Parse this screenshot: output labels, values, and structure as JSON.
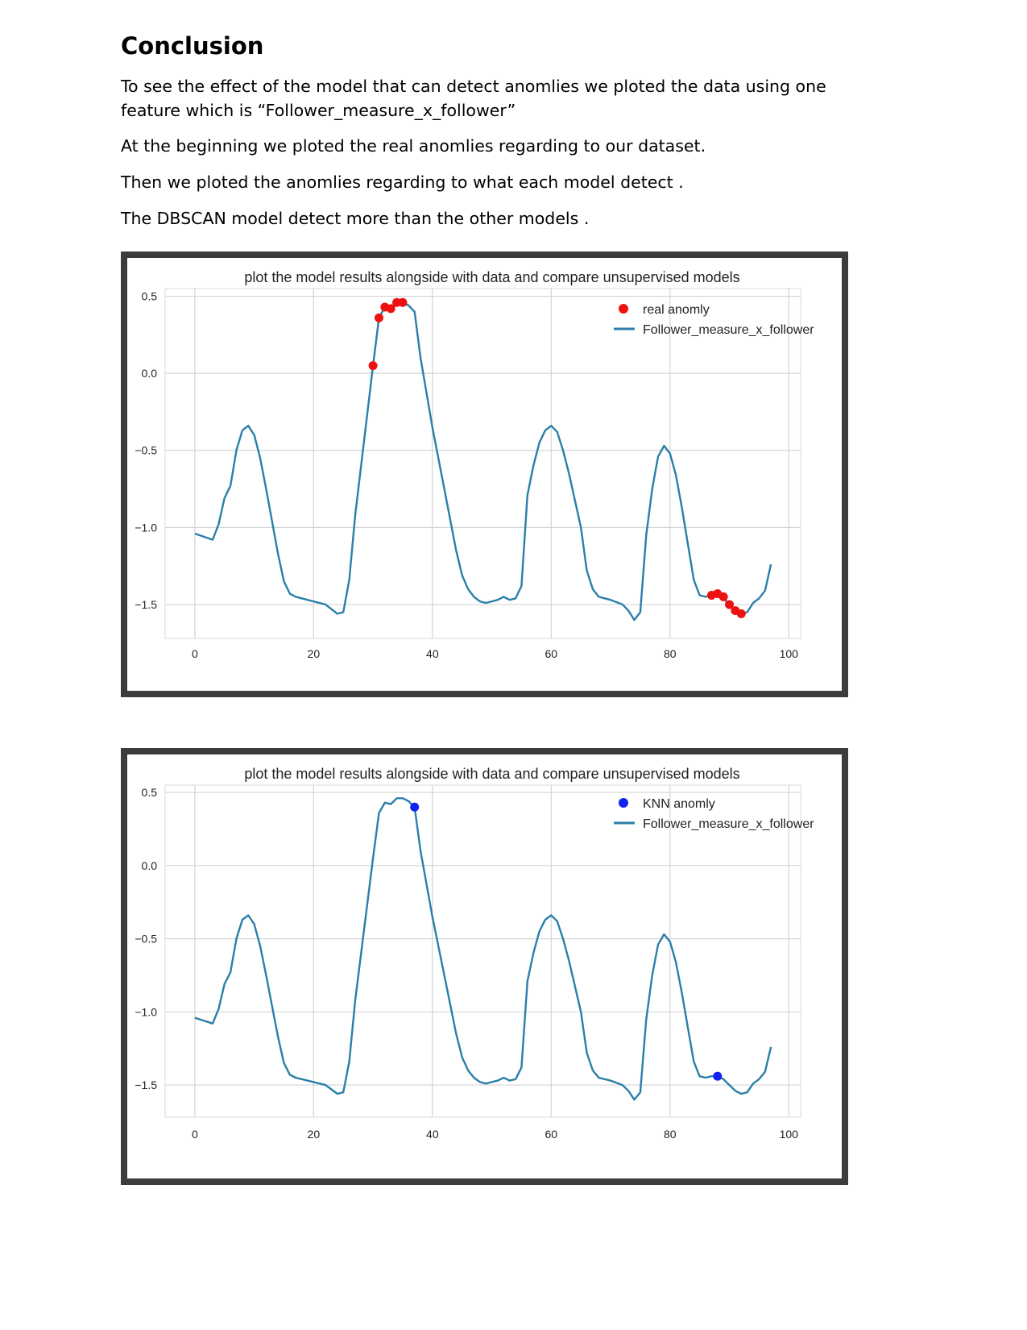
{
  "heading": "Conclusion",
  "paragraphs": [
    "To see the effect of the model that can detect anomlies we ploted the data using one feature which is “Follower_measure_x_follower”",
    "At the beginning we ploted the real anomlies regarding to our dataset.",
    "Then we ploted the anomlies regarding to what each model detect .",
    "The DBSCAN model detect more than the other models ."
  ],
  "figures": [
    {
      "title": "plot the model results alongside with data and compare unsupervised models",
      "line_legend": "Follower_measure_x_follower",
      "marker_legend": "real anomly",
      "marker_color": "#ee1111",
      "line_color": "#2a7fa8",
      "x_ticks": [
        "0",
        "20",
        "40",
        "60",
        "80",
        "100"
      ],
      "y_ticks": [
        "0.5",
        "0.0",
        "−0.5",
        "−1.0",
        "−1.5"
      ]
    },
    {
      "title": "plot the model results alongside with data and compare unsupervised models",
      "line_legend": "Follower_measure_x_follower",
      "marker_legend": "KNN anomly",
      "marker_color": "#1122ee",
      "line_color": "#2a7fa8",
      "x_ticks": [
        "0",
        "20",
        "40",
        "60",
        "80",
        "100"
      ],
      "y_ticks": [
        "0.5",
        "0.0",
        "−0.5",
        "−1.0",
        "−1.5"
      ]
    }
  ],
  "chart_data": [
    {
      "type": "line",
      "title": "plot the model results alongside with data and compare unsupervised models",
      "xlim": [
        -5,
        102
      ],
      "ylim": [
        -1.72,
        0.55
      ],
      "grid": true,
      "legend": "top-right",
      "x_ticks": [
        0,
        20,
        40,
        60,
        80,
        100
      ],
      "y_ticks": [
        0.5,
        0.0,
        -0.5,
        -1.0,
        -1.5
      ],
      "series": [
        {
          "name": "Follower_measure_x_follower",
          "kind": "line",
          "points": [
            [
              0,
              -1.04
            ],
            [
              3,
              -1.08
            ],
            [
              4,
              -0.98
            ],
            [
              5,
              -0.81
            ],
            [
              6,
              -0.73
            ],
            [
              7,
              -0.5
            ],
            [
              8,
              -0.37
            ],
            [
              9,
              -0.34
            ],
            [
              10,
              -0.4
            ],
            [
              11,
              -0.55
            ],
            [
              12,
              -0.75
            ],
            [
              14,
              -1.17
            ],
            [
              15,
              -1.35
            ],
            [
              16,
              -1.43
            ],
            [
              17,
              -1.45
            ],
            [
              18,
              -1.46
            ],
            [
              20,
              -1.48
            ],
            [
              22,
              -1.5
            ],
            [
              23,
              -1.53
            ],
            [
              24,
              -1.56
            ],
            [
              25,
              -1.55
            ],
            [
              26,
              -1.34
            ],
            [
              27,
              -0.92
            ],
            [
              30,
              0.05
            ],
            [
              31,
              0.36
            ],
            [
              32,
              0.43
            ],
            [
              33,
              0.42
            ],
            [
              34,
              0.46
            ],
            [
              35,
              0.46
            ],
            [
              36,
              0.44
            ],
            [
              37,
              0.4
            ],
            [
              38,
              0.1
            ],
            [
              40,
              -0.35
            ],
            [
              42,
              -0.75
            ],
            [
              44,
              -1.15
            ],
            [
              45,
              -1.31
            ],
            [
              46,
              -1.4
            ],
            [
              47,
              -1.45
            ],
            [
              48,
              -1.48
            ],
            [
              49,
              -1.49
            ],
            [
              50,
              -1.48
            ],
            [
              51,
              -1.47
            ],
            [
              52,
              -1.45
            ],
            [
              53,
              -1.47
            ],
            [
              54,
              -1.46
            ],
            [
              55,
              -1.38
            ],
            [
              56,
              -0.79
            ],
            [
              57,
              -0.6
            ],
            [
              58,
              -0.45
            ],
            [
              59,
              -0.37
            ],
            [
              60,
              -0.34
            ],
            [
              61,
              -0.38
            ],
            [
              62,
              -0.5
            ],
            [
              63,
              -0.65
            ],
            [
              65,
              -1.0
            ],
            [
              66,
              -1.28
            ],
            [
              67,
              -1.4
            ],
            [
              68,
              -1.45
            ],
            [
              69,
              -1.46
            ],
            [
              70,
              -1.47
            ],
            [
              72,
              -1.5
            ],
            [
              73,
              -1.54
            ],
            [
              74,
              -1.6
            ],
            [
              75,
              -1.55
            ],
            [
              76,
              -1.05
            ],
            [
              77,
              -0.75
            ],
            [
              78,
              -0.54
            ],
            [
              79,
              -0.47
            ],
            [
              80,
              -0.52
            ],
            [
              81,
              -0.66
            ],
            [
              82,
              -0.87
            ],
            [
              84,
              -1.34
            ],
            [
              85,
              -1.44
            ],
            [
              86,
              -1.45
            ],
            [
              87,
              -1.44
            ],
            [
              88,
              -1.44
            ],
            [
              89,
              -1.46
            ],
            [
              90,
              -1.5
            ],
            [
              91,
              -1.54
            ],
            [
              92,
              -1.56
            ],
            [
              93,
              -1.55
            ],
            [
              94,
              -1.49
            ],
            [
              95,
              -1.46
            ],
            [
              96,
              -1.41
            ],
            [
              97,
              -1.24
            ]
          ]
        },
        {
          "name": "real anomly",
          "kind": "scatter",
          "points": [
            [
              30,
              0.05
            ],
            [
              31,
              0.36
            ],
            [
              32,
              0.43
            ],
            [
              33,
              0.42
            ],
            [
              34,
              0.46
            ],
            [
              35,
              0.46
            ],
            [
              87,
              -1.44
            ],
            [
              88,
              -1.43
            ],
            [
              89,
              -1.45
            ],
            [
              90,
              -1.5
            ],
            [
              91,
              -1.54
            ],
            [
              92,
              -1.56
            ]
          ]
        }
      ]
    },
    {
      "type": "line",
      "title": "plot the model results alongside with data and compare unsupervised models",
      "xlim": [
        -5,
        102
      ],
      "ylim": [
        -1.72,
        0.55
      ],
      "grid": true,
      "legend": "top-right",
      "x_ticks": [
        0,
        20,
        40,
        60,
        80,
        100
      ],
      "y_ticks": [
        0.5,
        0.0,
        -0.5,
        -1.0,
        -1.5
      ],
      "series": [
        {
          "name": "Follower_measure_x_follower",
          "kind": "line",
          "points": [
            [
              0,
              -1.04
            ],
            [
              3,
              -1.08
            ],
            [
              4,
              -0.98
            ],
            [
              5,
              -0.81
            ],
            [
              6,
              -0.73
            ],
            [
              7,
              -0.5
            ],
            [
              8,
              -0.37
            ],
            [
              9,
              -0.34
            ],
            [
              10,
              -0.4
            ],
            [
              11,
              -0.55
            ],
            [
              12,
              -0.75
            ],
            [
              14,
              -1.17
            ],
            [
              15,
              -1.35
            ],
            [
              16,
              -1.43
            ],
            [
              17,
              -1.45
            ],
            [
              18,
              -1.46
            ],
            [
              20,
              -1.48
            ],
            [
              22,
              -1.5
            ],
            [
              23,
              -1.53
            ],
            [
              24,
              -1.56
            ],
            [
              25,
              -1.55
            ],
            [
              26,
              -1.34
            ],
            [
              27,
              -0.92
            ],
            [
              30,
              0.05
            ],
            [
              31,
              0.36
            ],
            [
              32,
              0.43
            ],
            [
              33,
              0.42
            ],
            [
              34,
              0.46
            ],
            [
              35,
              0.46
            ],
            [
              36,
              0.44
            ],
            [
              37,
              0.4
            ],
            [
              38,
              0.1
            ],
            [
              40,
              -0.35
            ],
            [
              42,
              -0.75
            ],
            [
              44,
              -1.15
            ],
            [
              45,
              -1.31
            ],
            [
              46,
              -1.4
            ],
            [
              47,
              -1.45
            ],
            [
              48,
              -1.48
            ],
            [
              49,
              -1.49
            ],
            [
              50,
              -1.48
            ],
            [
              51,
              -1.47
            ],
            [
              52,
              -1.45
            ],
            [
              53,
              -1.47
            ],
            [
              54,
              -1.46
            ],
            [
              55,
              -1.38
            ],
            [
              56,
              -0.79
            ],
            [
              57,
              -0.6
            ],
            [
              58,
              -0.45
            ],
            [
              59,
              -0.37
            ],
            [
              60,
              -0.34
            ],
            [
              61,
              -0.38
            ],
            [
              62,
              -0.5
            ],
            [
              63,
              -0.65
            ],
            [
              65,
              -1.0
            ],
            [
              66,
              -1.28
            ],
            [
              67,
              -1.4
            ],
            [
              68,
              -1.45
            ],
            [
              69,
              -1.46
            ],
            [
              70,
              -1.47
            ],
            [
              72,
              -1.5
            ],
            [
              73,
              -1.54
            ],
            [
              74,
              -1.6
            ],
            [
              75,
              -1.55
            ],
            [
              76,
              -1.05
            ],
            [
              77,
              -0.75
            ],
            [
              78,
              -0.54
            ],
            [
              79,
              -0.47
            ],
            [
              80,
              -0.52
            ],
            [
              81,
              -0.66
            ],
            [
              82,
              -0.87
            ],
            [
              84,
              -1.34
            ],
            [
              85,
              -1.44
            ],
            [
              86,
              -1.45
            ],
            [
              87,
              -1.44
            ],
            [
              88,
              -1.44
            ],
            [
              89,
              -1.46
            ],
            [
              90,
              -1.5
            ],
            [
              91,
              -1.54
            ],
            [
              92,
              -1.56
            ],
            [
              93,
              -1.55
            ],
            [
              94,
              -1.49
            ],
            [
              95,
              -1.46
            ],
            [
              96,
              -1.41
            ],
            [
              97,
              -1.24
            ]
          ]
        },
        {
          "name": "KNN anomly",
          "kind": "scatter",
          "points": [
            [
              37,
              0.4
            ],
            [
              88,
              -1.44
            ]
          ]
        }
      ]
    }
  ]
}
